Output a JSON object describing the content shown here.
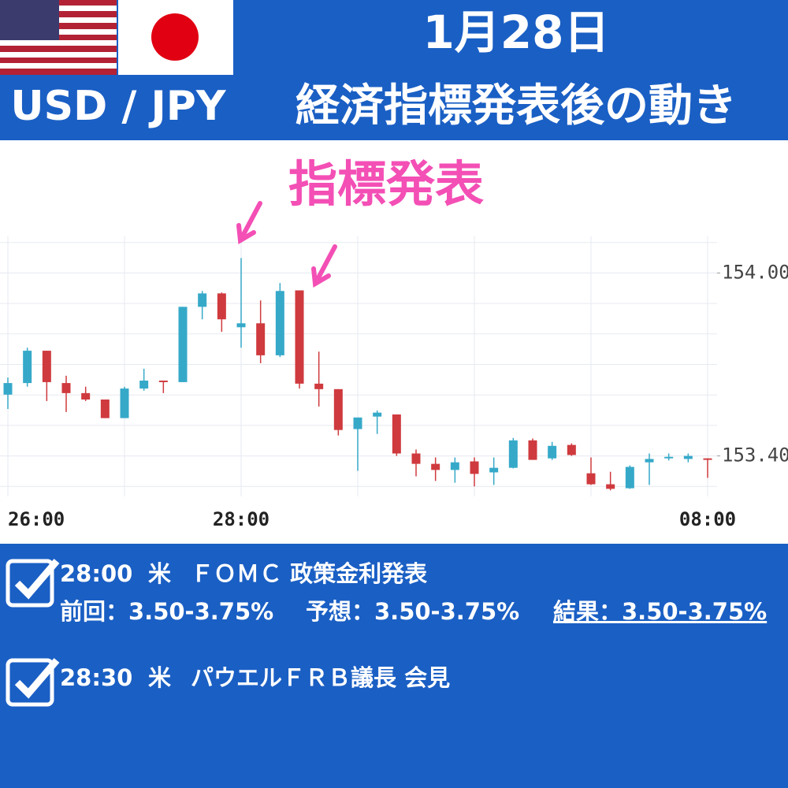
{
  "header": {
    "pair": "USD / JPY",
    "date": "1月28日",
    "title": "経済指標発表後の動き"
  },
  "chart_data": {
    "type": "candlestick",
    "annotation": "指標発表",
    "categories": [
      "26:00",
      null,
      null,
      null,
      null,
      null,
      null,
      null,
      null,
      null,
      null,
      null,
      "28:00",
      null,
      null,
      null,
      null,
      null,
      null,
      null,
      null,
      null,
      null,
      null,
      null,
      null,
      null,
      null,
      null,
      null,
      null,
      null,
      null,
      null,
      null,
      null,
      "08:00"
    ],
    "open": [
      153.601,
      153.639,
      153.745,
      153.639,
      153.606,
      153.585,
      153.524,
      153.621,
      153.647,
      153.642,
      153.889,
      153.933,
      153.822,
      153.835,
      153.73,
      153.943,
      153.637,
      153.619,
      153.488,
      153.529,
      153.536,
      153.408,
      153.374,
      153.354,
      153.382,
      153.346,
      153.361,
      153.451,
      153.392,
      153.436,
      153.343,
      153.307,
      153.294,
      153.379,
      153.392,
      153.39,
      153.392
    ],
    "high": [
      153.657,
      153.755,
      153.745,
      153.663,
      153.627,
      153.585,
      153.627,
      153.686,
      153.647,
      153.889,
      153.941,
      153.936,
      154.049,
      153.91,
      153.967,
      153.943,
      153.742,
      153.619,
      153.526,
      153.549,
      153.536,
      153.421,
      153.395,
      153.395,
      153.395,
      153.395,
      153.459,
      153.457,
      153.446,
      153.441,
      153.395,
      153.348,
      153.369,
      153.408,
      153.408,
      153.408,
      153.392
    ],
    "low": [
      153.554,
      153.627,
      153.58,
      153.544,
      153.58,
      153.524,
      153.524,
      153.614,
      153.606,
      153.642,
      153.848,
      153.807,
      153.755,
      153.704,
      153.724,
      153.621,
      153.562,
      153.467,
      153.351,
      153.472,
      153.4,
      153.333,
      153.318,
      153.312,
      153.3,
      153.305,
      153.359,
      153.387,
      153.387,
      153.4,
      153.305,
      153.287,
      153.292,
      153.305,
      153.385,
      153.379,
      153.328
    ],
    "close": [
      153.639,
      153.745,
      153.642,
      153.606,
      153.585,
      153.524,
      153.621,
      153.647,
      153.642,
      153.889,
      153.933,
      153.848,
      153.835,
      153.73,
      153.941,
      153.637,
      153.619,
      153.485,
      153.526,
      153.542,
      153.408,
      153.374,
      153.354,
      153.379,
      153.341,
      153.361,
      153.451,
      153.387,
      153.433,
      153.403,
      153.307,
      153.292,
      153.364,
      153.39,
      153.397,
      153.4,
      153.387
    ],
    "up_color": "#36a9c9",
    "down_color": "#cf3a3e",
    "ylim": [
      153.28,
      154.12
    ],
    "yticks": [
      {
        "value": 154.0,
        "label": "154.00"
      },
      {
        "value": 153.4,
        "label": "153.40"
      }
    ],
    "ygrid": [
      153.3,
      153.4,
      153.5,
      153.6,
      153.7,
      153.8,
      153.9,
      154.0,
      154.1
    ],
    "grid": true
  },
  "events": [
    {
      "time": "28:00",
      "country": "米",
      "name": "ＦＯＭＣ 政策金利発表",
      "previous": "前回：3.50-3.75%",
      "forecast": "予想：3.50-3.75%",
      "result": "結果：3.50-3.75%"
    },
    {
      "time": "28:30",
      "country": "米",
      "name": "パウエルＦＲＢ議長 会見"
    }
  ]
}
